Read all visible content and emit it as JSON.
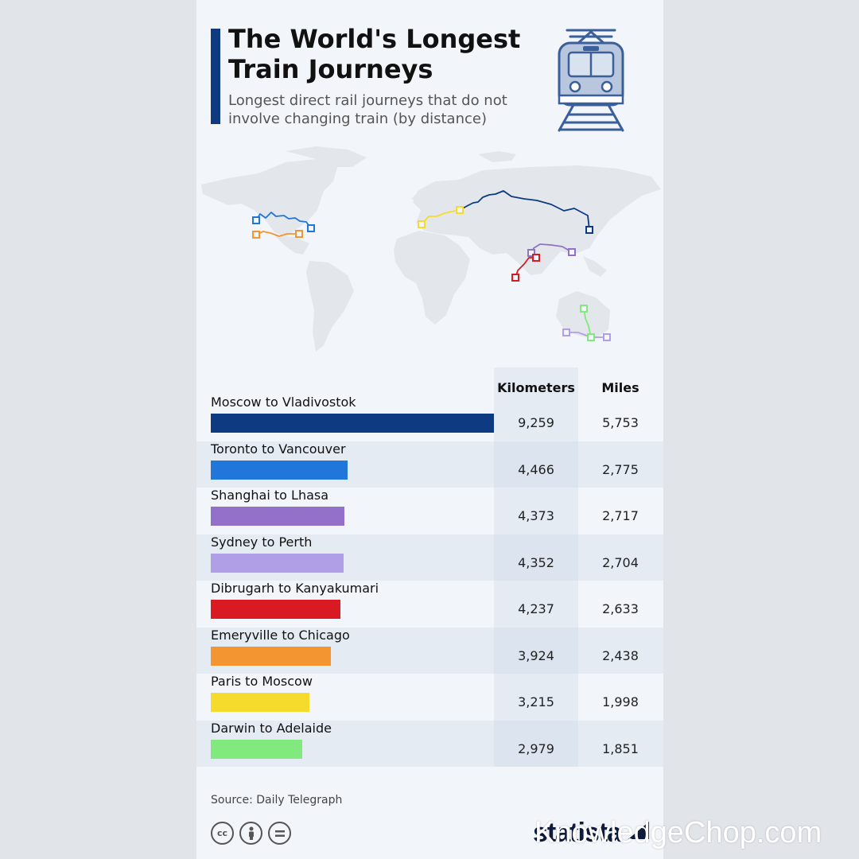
{
  "header": {
    "title": "The World's Longest Train Journeys",
    "subtitle": "Longest direct rail journeys that do not involve changing train (by distance)",
    "icon": "train-icon"
  },
  "table": {
    "col_km": "Kilometers",
    "col_miles": "Miles"
  },
  "chart_data": {
    "type": "bar",
    "orientation": "horizontal",
    "title": "The World's Longest Train Journeys",
    "subtitle": "Longest direct rail journeys that do not involve changing train (by distance)",
    "categories": [
      "Moscow to Vladivostok",
      "Toronto to Vancouver",
      "Shanghai to Lhasa",
      "Sydney to Perth",
      "Dibrugarh to Kanyakumari",
      "Emeryville to Chicago",
      "Paris to Moscow",
      "Darwin to Adelaide"
    ],
    "series": [
      {
        "name": "Kilometers",
        "values": [
          9259,
          4466,
          4373,
          4352,
          4237,
          3924,
          3215,
          2979
        ]
      },
      {
        "name": "Miles",
        "values": [
          5753,
          2775,
          2717,
          2704,
          2633,
          2438,
          1998,
          1851
        ]
      }
    ],
    "rows": [
      {
        "label": "Moscow to Vladivostok",
        "km": "9,259",
        "miles": "5,753",
        "km_value": 9259,
        "color": "#0d3a80"
      },
      {
        "label": "Toronto to Vancouver",
        "km": "4,466",
        "miles": "2,775",
        "km_value": 4466,
        "color": "#2176d9"
      },
      {
        "label": "Shanghai to Lhasa",
        "km": "4,373",
        "miles": "2,717",
        "km_value": 4373,
        "color": "#9371c8"
      },
      {
        "label": "Sydney to Perth",
        "km": "4,352",
        "miles": "2,704",
        "km_value": 4352,
        "color": "#b09fe6"
      },
      {
        "label": "Dibrugarh to Kanyakumari",
        "km": "4,237",
        "miles": "2,633",
        "km_value": 4237,
        "color": "#d91a22"
      },
      {
        "label": "Emeryville to Chicago",
        "km": "3,924",
        "miles": "2,438",
        "km_value": 3924,
        "color": "#f39530"
      },
      {
        "label": "Paris to Moscow",
        "km": "3,215",
        "miles": "1,998",
        "km_value": 3215,
        "color": "#f5dc2c"
      },
      {
        "label": "Darwin to Adelaide",
        "km": "2,979",
        "miles": "1,851",
        "km_value": 2979,
        "color": "#81e97d"
      }
    ],
    "xlim": [
      0,
      9259
    ],
    "grid": false,
    "legend": "none"
  },
  "footer": {
    "source": "Source: Daily Telegraph",
    "license_icons": [
      "cc",
      "by",
      "nd"
    ],
    "brand": "statista",
    "watermark": "KnowledgeChop.com"
  }
}
